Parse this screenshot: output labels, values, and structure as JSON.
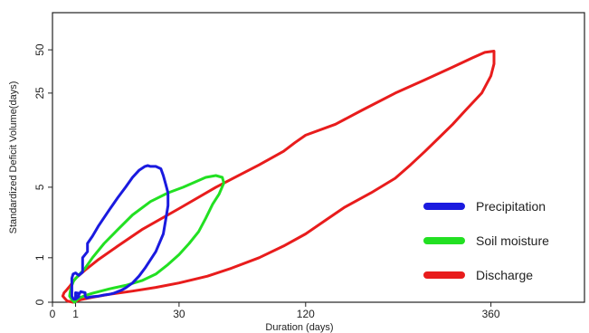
{
  "chart_data": {
    "type": "line",
    "title": "",
    "xlabel": "Duration (days)",
    "ylabel": "Standardized Deficit Volume(days)",
    "x_scale": "sqrt",
    "y_scale": "log1p",
    "xlim": [
      0,
      530
    ],
    "ylim": [
      0,
      90
    ],
    "x_ticks": [
      0,
      1,
      30,
      120,
      360
    ],
    "x_tick_labels": [
      "0",
      "1",
      "30",
      "120",
      "360"
    ],
    "y_ticks": [
      0,
      1,
      5,
      25,
      50
    ],
    "y_tick_labels": [
      "0",
      "1",
      "5",
      "25",
      "50"
    ],
    "grid": false,
    "legend_position": "bottom-right",
    "series": [
      {
        "name": "Precipitation",
        "color": "#1a1adf",
        "closed": true,
        "x": [
          1,
          0.8,
          0.7,
          0.7,
          0.7,
          0.8,
          1,
          1.3,
          1.7,
          1.7,
          2.3,
          2.3,
          3,
          4,
          6,
          8,
          10,
          12,
          14,
          16,
          17,
          18,
          20,
          22,
          23,
          24,
          25,
          25,
          24,
          23,
          20,
          16,
          14,
          12,
          10,
          9,
          8,
          7,
          6,
          5,
          4,
          3,
          2.5,
          2.2,
          2,
          2,
          1.5,
          1.2,
          1,
          1,
          1.3,
          1.3,
          1,
          0.85
        ],
        "y": [
          0.05,
          0.06,
          0.1,
          0.25,
          0.45,
          0.55,
          0.58,
          0.52,
          0.6,
          1.0,
          1.2,
          1.5,
          1.8,
          2.3,
          3.2,
          4.1,
          5.0,
          6.0,
          6.8,
          7.3,
          7.4,
          7.3,
          7.3,
          7.0,
          6.2,
          5.3,
          4.5,
          3.5,
          2.6,
          1.9,
          1.2,
          0.7,
          0.5,
          0.35,
          0.25,
          0.21,
          0.18,
          0.15,
          0.13,
          0.12,
          0.1,
          0.09,
          0.08,
          0.07,
          0.1,
          0.16,
          0.18,
          0.1,
          0.09,
          0.16,
          0.15,
          0.09,
          0.05,
          0.05
        ]
      },
      {
        "name": "Soil moisture",
        "color": "#22e022",
        "closed": true,
        "x": [
          0.7,
          0.55,
          0.6,
          0.7,
          0.85,
          1.2,
          2,
          3,
          5,
          8,
          12,
          18,
          25,
          32,
          38,
          44,
          50,
          54,
          55,
          52,
          48,
          44,
          40,
          35,
          30,
          25,
          20,
          15,
          10,
          6,
          4,
          3,
          2,
          1.5,
          1.2,
          0.9
        ],
        "y": [
          0.04,
          0.1,
          0.2,
          0.3,
          0.4,
          0.5,
          0.7,
          1.0,
          1.5,
          2.1,
          2.9,
          3.8,
          4.5,
          5.0,
          5.5,
          6.0,
          6.2,
          6.0,
          5.4,
          4.4,
          3.6,
          2.7,
          2.0,
          1.5,
          1.1,
          0.8,
          0.55,
          0.4,
          0.3,
          0.23,
          0.18,
          0.15,
          0.11,
          0.08,
          0.05,
          0.0
        ]
      },
      {
        "name": "Discharge",
        "color": "#e81c1c",
        "closed": true,
        "x": [
          0.2,
          0.25,
          0.35,
          0.6,
          1,
          2,
          4,
          8,
          15,
          30,
          50,
          80,
          100,
          110,
          120,
          150,
          180,
          220,
          260,
          300,
          330,
          350,
          365,
          365,
          360,
          345,
          320,
          300,
          280,
          260,
          240,
          220,
          190,
          160,
          140,
          120,
          100,
          80,
          60,
          45,
          30,
          20,
          12,
          6,
          3,
          1.5,
          0.8,
          0.4
        ],
        "y": [
          0.1,
          0.16,
          0.2,
          0.3,
          0.45,
          0.65,
          0.95,
          1.4,
          2.1,
          3.3,
          5.0,
          7.5,
          9.5,
          11.0,
          12.5,
          15.0,
          19.0,
          25.0,
          31.0,
          38.0,
          44.0,
          48.0,
          49.0,
          40.0,
          33.0,
          25.0,
          19.0,
          15.0,
          12.0,
          9.5,
          7.5,
          5.9,
          4.5,
          3.4,
          2.6,
          1.9,
          1.4,
          1.0,
          0.7,
          0.5,
          0.35,
          0.26,
          0.19,
          0.13,
          0.08,
          0.04,
          0.0,
          0.02
        ]
      }
    ]
  }
}
